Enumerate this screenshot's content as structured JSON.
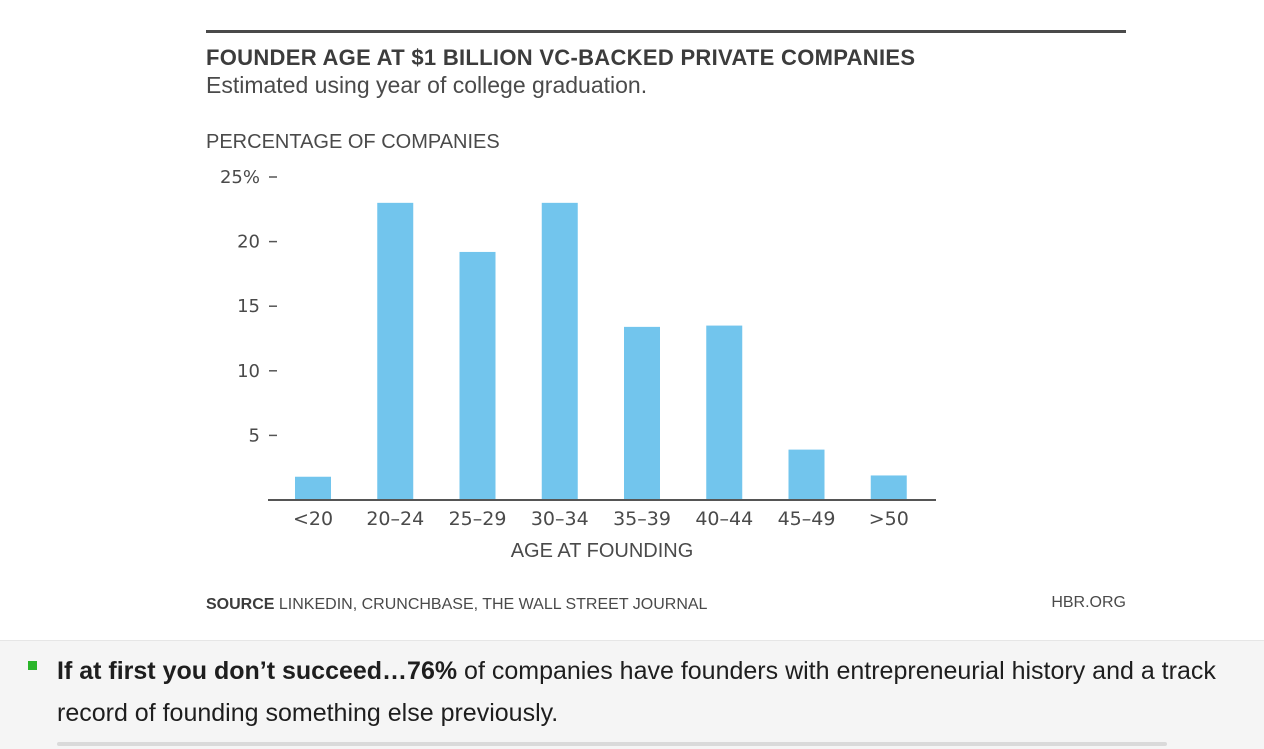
{
  "chart_data": {
    "type": "bar",
    "title": "FOUNDER AGE AT $1 BILLION VC-BACKED PRIVATE COMPANIES",
    "subtitle": "Estimated using year of college graduation.",
    "ylabel": "PERCENTAGE OF COMPANIES",
    "xlabel": "AGE AT FOUNDING",
    "categories": [
      "<20",
      "20–24",
      "25–29",
      "30–34",
      "35–39",
      "40–44",
      "45–49",
      ">50"
    ],
    "values": [
      1.8,
      23.0,
      19.2,
      23.0,
      13.4,
      13.5,
      3.9,
      1.9
    ],
    "ylim": [
      0,
      25
    ],
    "yticks": [
      5,
      10,
      15,
      20,
      25
    ],
    "ytick_labels": [
      "5",
      "10",
      "15",
      "20",
      "25%"
    ],
    "bar_color": "#72c5ed",
    "axis_color": "#555555",
    "grid": false,
    "legend": "none"
  },
  "source": {
    "label": "SOURCE",
    "text": "LINKEDIN, CRUNCHBASE, THE WALL STREET JOURNAL"
  },
  "credit": "HBR.ORG",
  "bullet": {
    "bold_text": "If at first you don’t succeed…76%",
    "text": " of companies have founders with entrepreneurial history and a track record of founding something else previously.",
    "marker_color": "#2ab52a"
  }
}
